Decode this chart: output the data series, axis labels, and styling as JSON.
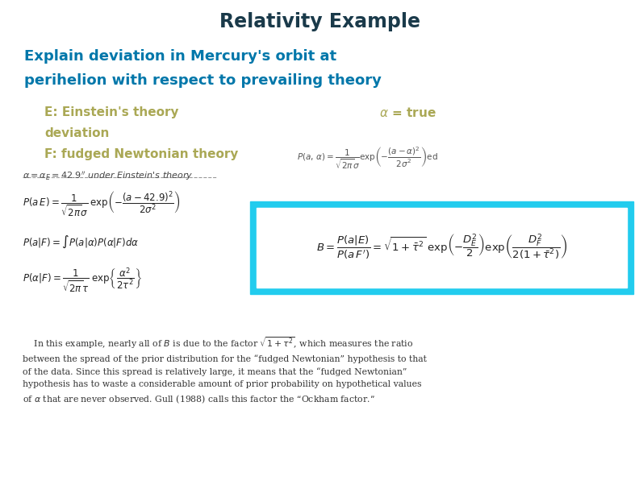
{
  "title": "Relativity Example",
  "title_color": "#1a3a4a",
  "subtitle_line1": "Explain deviation in Mercury's orbit at",
  "subtitle_line2": "perihelion with respect to prevailing theory",
  "subtitle_color": "#0077aa",
  "bullet_color": "#aaa855",
  "box_bg": "#22ccee",
  "box_inner_bg": "#ffffff",
  "bg_color": "#ffffff",
  "title_fontsize": 17,
  "subtitle_fontsize": 13,
  "bullet_fontsize": 11,
  "eq_fontsize": 8.5,
  "body_fontsize": 7.8
}
